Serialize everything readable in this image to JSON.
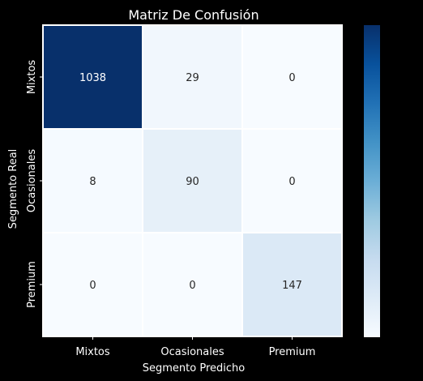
{
  "chart_data": {
    "type": "heatmap",
    "title": "Matriz De Confusión",
    "xlabel": "Segmento Predicho",
    "ylabel": "Segmento Real",
    "x_categories": [
      "Mixtos",
      "Ocasionales",
      "Premium"
    ],
    "y_categories": [
      "Mixtos",
      "Ocasionales",
      "Premium"
    ],
    "values": [
      [
        1038,
        29,
        0
      ],
      [
        8,
        90,
        0
      ],
      [
        0,
        0,
        147
      ]
    ],
    "colormap": "Blues",
    "vmin": 0,
    "vmax": 1038,
    "colorbar": true,
    "cell_border_color": "#ffffff",
    "text_dark_color": "#262626",
    "text_light_color": "#ffffff"
  }
}
